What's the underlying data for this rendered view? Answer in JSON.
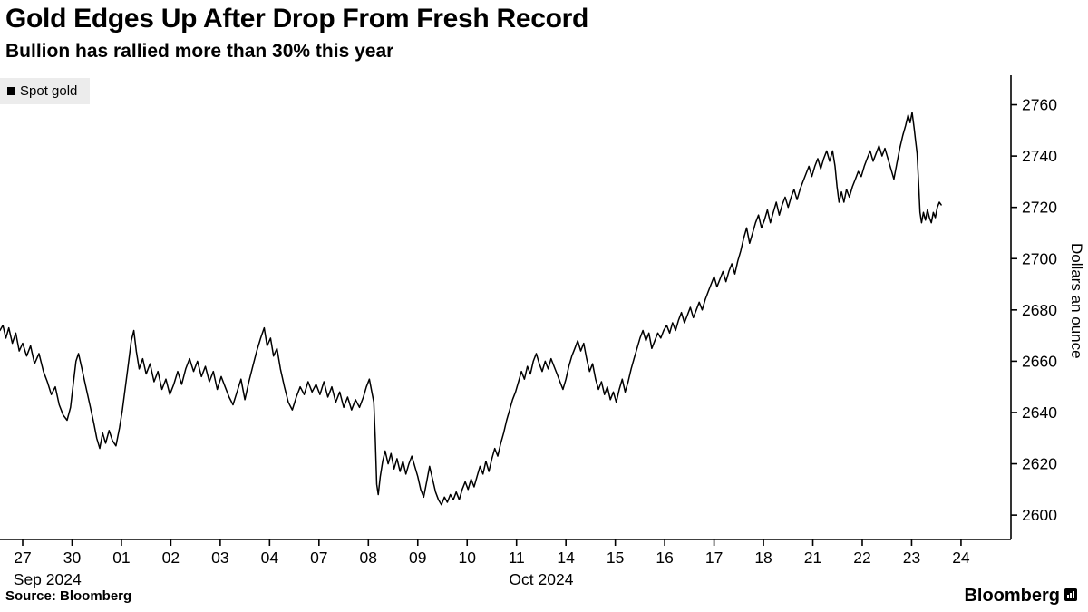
{
  "header": {
    "title": "Gold Edges Up After Drop From Fresh Record",
    "subtitle": "Bullion has rallied more than 30% this year"
  },
  "legend": {
    "label": "Spot gold",
    "swatch_color": "#000000"
  },
  "footer": {
    "source": "Source: Bloomberg",
    "brand": "Bloomberg"
  },
  "chart_data": {
    "type": "line",
    "title": "Gold Edges Up After Drop From Fresh Record",
    "subtitle": "Bullion has rallied more than 30% this year",
    "xlabel": "",
    "ylabel": "Dollars an ounce",
    "grid": false,
    "legend_position": "top-left",
    "line_color": "#000000",
    "axis_color": "#000000",
    "ylim": [
      2590.5,
      2771.5
    ],
    "y_ticks": [
      2600,
      2620,
      2640,
      2660,
      2680,
      2700,
      2720,
      2740,
      2760
    ],
    "x_tick_labels": [
      "27",
      "30",
      "01",
      "02",
      "03",
      "04",
      "07",
      "08",
      "09",
      "10",
      "11",
      "14",
      "15",
      "16",
      "17",
      "18",
      "21",
      "22",
      "23",
      "24"
    ],
    "x_month_labels": [
      {
        "label": "Sep 2024",
        "span": [
          0,
          1
        ]
      },
      {
        "label": "Oct 2024",
        "span": [
          2,
          19
        ]
      }
    ],
    "series": [
      {
        "name": "Spot gold",
        "color": "#000000",
        "points": [
          [
            -0.46,
            2672
          ],
          [
            -0.4,
            2674
          ],
          [
            -0.34,
            2669
          ],
          [
            -0.28,
            2673
          ],
          [
            -0.21,
            2667
          ],
          [
            -0.14,
            2671
          ],
          [
            -0.07,
            2664
          ],
          [
            0.0,
            2667
          ],
          [
            0.08,
            2662
          ],
          [
            0.16,
            2666
          ],
          [
            0.24,
            2659
          ],
          [
            0.33,
            2663
          ],
          [
            0.42,
            2656
          ],
          [
            0.5,
            2652
          ],
          [
            0.58,
            2647
          ],
          [
            0.66,
            2650
          ],
          [
            0.74,
            2643
          ],
          [
            0.82,
            2639
          ],
          [
            0.9,
            2637
          ],
          [
            0.97,
            2642
          ],
          [
            1.03,
            2652
          ],
          [
            1.08,
            2660
          ],
          [
            1.13,
            2663
          ],
          [
            1.2,
            2657
          ],
          [
            1.28,
            2650
          ],
          [
            1.36,
            2643
          ],
          [
            1.44,
            2636
          ],
          [
            1.5,
            2630
          ],
          [
            1.56,
            2626
          ],
          [
            1.62,
            2632
          ],
          [
            1.68,
            2628
          ],
          [
            1.75,
            2633
          ],
          [
            1.82,
            2629
          ],
          [
            1.89,
            2627
          ],
          [
            1.96,
            2634
          ],
          [
            2.02,
            2641
          ],
          [
            2.08,
            2650
          ],
          [
            2.14,
            2659
          ],
          [
            2.2,
            2668
          ],
          [
            2.25,
            2672
          ],
          [
            2.3,
            2664
          ],
          [
            2.36,
            2657
          ],
          [
            2.43,
            2661
          ],
          [
            2.5,
            2655
          ],
          [
            2.58,
            2659
          ],
          [
            2.66,
            2652
          ],
          [
            2.74,
            2656
          ],
          [
            2.82,
            2649
          ],
          [
            2.9,
            2653
          ],
          [
            2.98,
            2647
          ],
          [
            3.06,
            2651
          ],
          [
            3.14,
            2656
          ],
          [
            3.22,
            2651
          ],
          [
            3.3,
            2657
          ],
          [
            3.38,
            2661
          ],
          [
            3.46,
            2656
          ],
          [
            3.54,
            2660
          ],
          [
            3.62,
            2654
          ],
          [
            3.7,
            2658
          ],
          [
            3.78,
            2652
          ],
          [
            3.86,
            2656
          ],
          [
            3.94,
            2649
          ],
          [
            4.02,
            2654
          ],
          [
            4.1,
            2650
          ],
          [
            4.18,
            2646
          ],
          [
            4.26,
            2643
          ],
          [
            4.34,
            2648
          ],
          [
            4.42,
            2653
          ],
          [
            4.5,
            2645
          ],
          [
            4.58,
            2652
          ],
          [
            4.66,
            2658
          ],
          [
            4.74,
            2664
          ],
          [
            4.82,
            2669
          ],
          [
            4.89,
            2673
          ],
          [
            4.95,
            2666
          ],
          [
            5.02,
            2669
          ],
          [
            5.08,
            2662
          ],
          [
            5.15,
            2665
          ],
          [
            5.22,
            2657
          ],
          [
            5.3,
            2650
          ],
          [
            5.38,
            2644
          ],
          [
            5.46,
            2641
          ],
          [
            5.54,
            2646
          ],
          [
            5.62,
            2650
          ],
          [
            5.7,
            2647
          ],
          [
            5.78,
            2652
          ],
          [
            5.86,
            2648
          ],
          [
            5.94,
            2651
          ],
          [
            6.02,
            2647
          ],
          [
            6.1,
            2652
          ],
          [
            6.18,
            2646
          ],
          [
            6.26,
            2650
          ],
          [
            6.34,
            2644
          ],
          [
            6.42,
            2648
          ],
          [
            6.5,
            2642
          ],
          [
            6.58,
            2646
          ],
          [
            6.66,
            2641
          ],
          [
            6.74,
            2645
          ],
          [
            6.82,
            2642
          ],
          [
            6.9,
            2646
          ],
          [
            6.96,
            2650
          ],
          [
            7.02,
            2653
          ],
          [
            7.07,
            2648
          ],
          [
            7.11,
            2644
          ],
          [
            7.14,
            2630
          ],
          [
            7.17,
            2612
          ],
          [
            7.2,
            2608
          ],
          [
            7.24,
            2615
          ],
          [
            7.29,
            2621
          ],
          [
            7.34,
            2625
          ],
          [
            7.4,
            2620
          ],
          [
            7.46,
            2624
          ],
          [
            7.52,
            2618
          ],
          [
            7.58,
            2622
          ],
          [
            7.64,
            2617
          ],
          [
            7.7,
            2621
          ],
          [
            7.76,
            2616
          ],
          [
            7.82,
            2620
          ],
          [
            7.88,
            2623
          ],
          [
            7.94,
            2619
          ],
          [
            8.0,
            2615
          ],
          [
            8.06,
            2610
          ],
          [
            8.12,
            2607
          ],
          [
            8.18,
            2613
          ],
          [
            8.24,
            2619
          ],
          [
            8.3,
            2614
          ],
          [
            8.36,
            2609
          ],
          [
            8.42,
            2606
          ],
          [
            8.48,
            2604
          ],
          [
            8.54,
            2607
          ],
          [
            8.6,
            2605
          ],
          [
            8.66,
            2608
          ],
          [
            8.72,
            2606
          ],
          [
            8.78,
            2609
          ],
          [
            8.84,
            2606
          ],
          [
            8.9,
            2610
          ],
          [
            8.96,
            2613
          ],
          [
            9.02,
            2610
          ],
          [
            9.08,
            2614
          ],
          [
            9.14,
            2611
          ],
          [
            9.2,
            2615
          ],
          [
            9.26,
            2619
          ],
          [
            9.32,
            2616
          ],
          [
            9.38,
            2621
          ],
          [
            9.44,
            2617
          ],
          [
            9.5,
            2622
          ],
          [
            9.56,
            2626
          ],
          [
            9.62,
            2623
          ],
          [
            9.68,
            2628
          ],
          [
            9.74,
            2632
          ],
          [
            9.8,
            2637
          ],
          [
            9.86,
            2641
          ],
          [
            9.92,
            2645
          ],
          [
            9.98,
            2648
          ],
          [
            10.04,
            2652
          ],
          [
            10.1,
            2656
          ],
          [
            10.16,
            2653
          ],
          [
            10.22,
            2658
          ],
          [
            10.28,
            2655
          ],
          [
            10.34,
            2660
          ],
          [
            10.4,
            2663
          ],
          [
            10.46,
            2659
          ],
          [
            10.52,
            2656
          ],
          [
            10.58,
            2660
          ],
          [
            10.64,
            2657
          ],
          [
            10.7,
            2661
          ],
          [
            10.76,
            2658
          ],
          [
            10.82,
            2655
          ],
          [
            10.88,
            2652
          ],
          [
            10.94,
            2649
          ],
          [
            11.0,
            2653
          ],
          [
            11.06,
            2658
          ],
          [
            11.12,
            2662
          ],
          [
            11.18,
            2665
          ],
          [
            11.24,
            2668
          ],
          [
            11.3,
            2664
          ],
          [
            11.36,
            2667
          ],
          [
            11.42,
            2661
          ],
          [
            11.48,
            2656
          ],
          [
            11.54,
            2659
          ],
          [
            11.6,
            2653
          ],
          [
            11.66,
            2649
          ],
          [
            11.72,
            2652
          ],
          [
            11.78,
            2647
          ],
          [
            11.84,
            2650
          ],
          [
            11.9,
            2645
          ],
          [
            11.96,
            2648
          ],
          [
            12.02,
            2644
          ],
          [
            12.08,
            2649
          ],
          [
            12.14,
            2653
          ],
          [
            12.2,
            2648
          ],
          [
            12.26,
            2652
          ],
          [
            12.32,
            2657
          ],
          [
            12.38,
            2661
          ],
          [
            12.44,
            2665
          ],
          [
            12.5,
            2669
          ],
          [
            12.56,
            2672
          ],
          [
            12.62,
            2668
          ],
          [
            12.68,
            2671
          ],
          [
            12.74,
            2665
          ],
          [
            12.8,
            2668
          ],
          [
            12.86,
            2671
          ],
          [
            12.92,
            2669
          ],
          [
            12.98,
            2672
          ],
          [
            13.04,
            2674
          ],
          [
            13.1,
            2671
          ],
          [
            13.16,
            2675
          ],
          [
            13.22,
            2672
          ],
          [
            13.28,
            2676
          ],
          [
            13.34,
            2679
          ],
          [
            13.4,
            2675
          ],
          [
            13.46,
            2678
          ],
          [
            13.52,
            2681
          ],
          [
            13.58,
            2677
          ],
          [
            13.64,
            2680
          ],
          [
            13.7,
            2683
          ],
          [
            13.76,
            2680
          ],
          [
            13.82,
            2684
          ],
          [
            13.88,
            2687
          ],
          [
            13.94,
            2690
          ],
          [
            14.0,
            2693
          ],
          [
            14.06,
            2689
          ],
          [
            14.12,
            2692
          ],
          [
            14.18,
            2695
          ],
          [
            14.24,
            2691
          ],
          [
            14.3,
            2695
          ],
          [
            14.36,
            2698
          ],
          [
            14.42,
            2694
          ],
          [
            14.48,
            2699
          ],
          [
            14.54,
            2703
          ],
          [
            14.6,
            2708
          ],
          [
            14.66,
            2712
          ],
          [
            14.72,
            2706
          ],
          [
            14.78,
            2710
          ],
          [
            14.84,
            2714
          ],
          [
            14.9,
            2717
          ],
          [
            14.96,
            2712
          ],
          [
            15.02,
            2715
          ],
          [
            15.08,
            2719
          ],
          [
            15.14,
            2714
          ],
          [
            15.2,
            2718
          ],
          [
            15.26,
            2722
          ],
          [
            15.32,
            2717
          ],
          [
            15.38,
            2721
          ],
          [
            15.44,
            2724
          ],
          [
            15.5,
            2720
          ],
          [
            15.56,
            2724
          ],
          [
            15.62,
            2727
          ],
          [
            15.68,
            2723
          ],
          [
            15.74,
            2727
          ],
          [
            15.8,
            2730
          ],
          [
            15.86,
            2733
          ],
          [
            15.92,
            2736
          ],
          [
            15.98,
            2732
          ],
          [
            16.04,
            2736
          ],
          [
            16.1,
            2739
          ],
          [
            16.16,
            2735
          ],
          [
            16.22,
            2739
          ],
          [
            16.28,
            2742
          ],
          [
            16.34,
            2738
          ],
          [
            16.4,
            2742
          ],
          [
            16.45,
            2736
          ],
          [
            16.49,
            2728
          ],
          [
            16.53,
            2722
          ],
          [
            16.58,
            2726
          ],
          [
            16.63,
            2722
          ],
          [
            16.68,
            2727
          ],
          [
            16.74,
            2724
          ],
          [
            16.8,
            2728
          ],
          [
            16.86,
            2731
          ],
          [
            16.92,
            2734
          ],
          [
            16.98,
            2732
          ],
          [
            17.04,
            2736
          ],
          [
            17.1,
            2739
          ],
          [
            17.16,
            2742
          ],
          [
            17.22,
            2738
          ],
          [
            17.28,
            2741
          ],
          [
            17.34,
            2744
          ],
          [
            17.4,
            2740
          ],
          [
            17.46,
            2743
          ],
          [
            17.52,
            2739
          ],
          [
            17.58,
            2735
          ],
          [
            17.64,
            2731
          ],
          [
            17.7,
            2737
          ],
          [
            17.76,
            2743
          ],
          [
            17.82,
            2748
          ],
          [
            17.88,
            2752
          ],
          [
            17.93,
            2756
          ],
          [
            17.97,
            2753
          ],
          [
            18.01,
            2757
          ],
          [
            18.05,
            2751
          ],
          [
            18.08,
            2746
          ],
          [
            18.11,
            2741
          ],
          [
            18.14,
            2730
          ],
          [
            18.17,
            2718
          ],
          [
            18.2,
            2714
          ],
          [
            18.24,
            2718
          ],
          [
            18.28,
            2715
          ],
          [
            18.32,
            2719
          ],
          [
            18.36,
            2716
          ],
          [
            18.4,
            2714
          ],
          [
            18.44,
            2718
          ],
          [
            18.48,
            2716
          ],
          [
            18.52,
            2720
          ],
          [
            18.56,
            2722
          ],
          [
            18.6,
            2721
          ]
        ]
      }
    ]
  }
}
